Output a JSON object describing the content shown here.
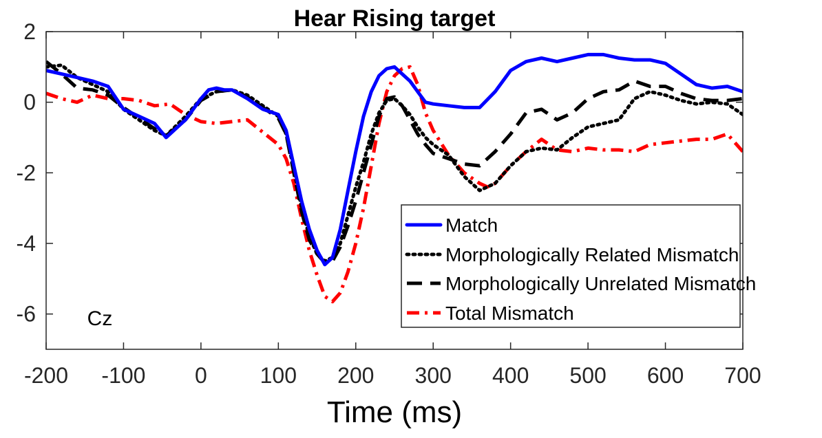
{
  "chart_data": {
    "type": "line",
    "title": "Hear Rising target",
    "xlabel": "Time (ms)",
    "ylabel": "",
    "xlim": [
      -200,
      700
    ],
    "ylim": [
      -7,
      2
    ],
    "xticks": [
      -200,
      -100,
      0,
      100,
      200,
      300,
      400,
      500,
      600,
      700
    ],
    "yticks": [
      2,
      0,
      -2,
      -4,
      -6
    ],
    "grid": false,
    "legend_position": "bottom-right",
    "annotation": "Cz",
    "series": [
      {
        "name": "Match",
        "color": "#0000ff",
        "style": "solid",
        "x": [
          -200,
          -180,
          -160,
          -140,
          -120,
          -100,
          -80,
          -60,
          -45,
          -20,
          0,
          10,
          20,
          30,
          40,
          60,
          80,
          100,
          110,
          120,
          130,
          140,
          150,
          160,
          170,
          180,
          190,
          200,
          210,
          220,
          230,
          240,
          250,
          260,
          270,
          280,
          290,
          300,
          320,
          340,
          360,
          380,
          400,
          420,
          440,
          460,
          480,
          500,
          520,
          540,
          560,
          580,
          600,
          620,
          640,
          660,
          680,
          700
        ],
        "y": [
          0.9,
          0.8,
          0.7,
          0.6,
          0.45,
          -0.2,
          -0.4,
          -0.6,
          -1.0,
          -0.5,
          0.1,
          0.35,
          0.4,
          0.35,
          0.35,
          0.1,
          -0.2,
          -0.35,
          -0.8,
          -1.8,
          -2.8,
          -3.6,
          -4.2,
          -4.6,
          -4.4,
          -3.6,
          -2.5,
          -1.4,
          -0.4,
          0.3,
          0.75,
          0.95,
          1.0,
          0.8,
          0.6,
          0.3,
          0.0,
          -0.05,
          -0.1,
          -0.15,
          -0.15,
          0.3,
          0.9,
          1.15,
          1.25,
          1.15,
          1.25,
          1.35,
          1.35,
          1.25,
          1.2,
          1.2,
          1.1,
          0.8,
          0.5,
          0.4,
          0.45,
          0.3
        ]
      },
      {
        "name": "Morphologically Related Mismatch",
        "color": "#000000",
        "style": "dotted",
        "x": [
          -200,
          -180,
          -160,
          -140,
          -120,
          -100,
          -80,
          -60,
          -45,
          -20,
          0,
          20,
          40,
          60,
          80,
          100,
          110,
          120,
          130,
          140,
          150,
          160,
          170,
          180,
          190,
          200,
          210,
          220,
          230,
          240,
          250,
          260,
          270,
          280,
          290,
          300,
          320,
          340,
          360,
          380,
          400,
          420,
          440,
          460,
          480,
          500,
          520,
          540,
          560,
          580,
          600,
          620,
          640,
          660,
          680,
          700
        ],
        "y": [
          1.0,
          1.05,
          0.7,
          0.5,
          0.3,
          -0.2,
          -0.5,
          -0.8,
          -0.95,
          -0.4,
          0.1,
          0.3,
          0.35,
          0.2,
          -0.1,
          -0.4,
          -0.9,
          -1.9,
          -3.0,
          -3.8,
          -4.3,
          -4.5,
          -4.4,
          -4.0,
          -3.2,
          -2.4,
          -1.7,
          -0.9,
          -0.3,
          0.05,
          0.1,
          -0.1,
          -0.35,
          -0.7,
          -1.0,
          -1.2,
          -1.5,
          -2.1,
          -2.5,
          -2.3,
          -1.8,
          -1.4,
          -1.3,
          -1.35,
          -1.0,
          -0.7,
          -0.6,
          -0.5,
          0.1,
          0.3,
          0.2,
          0.05,
          -0.05,
          0.0,
          -0.05,
          -0.35
        ]
      },
      {
        "name": "Morphologically Unrelated Mismatch",
        "color": "#000000",
        "style": "dashed",
        "x": [
          -200,
          -180,
          -160,
          -140,
          -120,
          -100,
          -80,
          -60,
          -45,
          -20,
          0,
          20,
          40,
          60,
          80,
          100,
          110,
          120,
          130,
          140,
          150,
          160,
          170,
          180,
          190,
          200,
          210,
          220,
          230,
          240,
          250,
          260,
          270,
          280,
          290,
          300,
          320,
          340,
          360,
          380,
          400,
          420,
          440,
          460,
          480,
          500,
          520,
          540,
          560,
          580,
          600,
          620,
          640,
          660,
          680,
          700
        ],
        "y": [
          1.15,
          0.8,
          0.4,
          0.35,
          0.2,
          -0.15,
          -0.45,
          -0.75,
          -0.95,
          -0.5,
          0.05,
          0.3,
          0.35,
          0.15,
          -0.15,
          -0.45,
          -0.9,
          -2.0,
          -3.1,
          -3.9,
          -4.3,
          -4.55,
          -4.5,
          -4.1,
          -3.5,
          -2.8,
          -2.0,
          -1.2,
          -0.4,
          0.1,
          0.15,
          -0.1,
          -0.5,
          -0.9,
          -1.2,
          -1.45,
          -1.6,
          -1.75,
          -1.8,
          -1.4,
          -0.9,
          -0.3,
          -0.2,
          -0.5,
          -0.3,
          0.1,
          0.3,
          0.35,
          0.6,
          0.45,
          0.45,
          0.25,
          0.1,
          0.05,
          0.05,
          0.1
        ]
      },
      {
        "name": "Total Mismatch",
        "color": "#ff0000",
        "style": "dashdot",
        "x": [
          -200,
          -180,
          -160,
          -140,
          -120,
          -100,
          -80,
          -60,
          -40,
          -20,
          0,
          20,
          40,
          60,
          80,
          100,
          110,
          120,
          130,
          140,
          150,
          160,
          170,
          180,
          190,
          200,
          210,
          220,
          230,
          240,
          250,
          260,
          270,
          280,
          290,
          300,
          320,
          340,
          360,
          370,
          380,
          400,
          420,
          440,
          460,
          480,
          500,
          520,
          540,
          560,
          580,
          600,
          620,
          640,
          660,
          680,
          700
        ],
        "y": [
          0.25,
          0.1,
          0.0,
          0.2,
          0.1,
          0.1,
          0.05,
          -0.1,
          -0.05,
          -0.35,
          -0.55,
          -0.6,
          -0.55,
          -0.5,
          -0.85,
          -1.2,
          -1.6,
          -2.3,
          -3.3,
          -4.2,
          -4.9,
          -5.5,
          -5.65,
          -5.4,
          -4.8,
          -4.0,
          -3.0,
          -1.8,
          -0.6,
          0.3,
          0.75,
          0.95,
          1.0,
          0.5,
          -0.3,
          -0.8,
          -1.5,
          -2.0,
          -2.3,
          -2.4,
          -2.3,
          -1.8,
          -1.4,
          -1.05,
          -1.35,
          -1.4,
          -1.3,
          -1.35,
          -1.35,
          -1.4,
          -1.2,
          -1.15,
          -1.1,
          -1.05,
          -1.05,
          -0.9,
          -1.4
        ]
      }
    ]
  }
}
